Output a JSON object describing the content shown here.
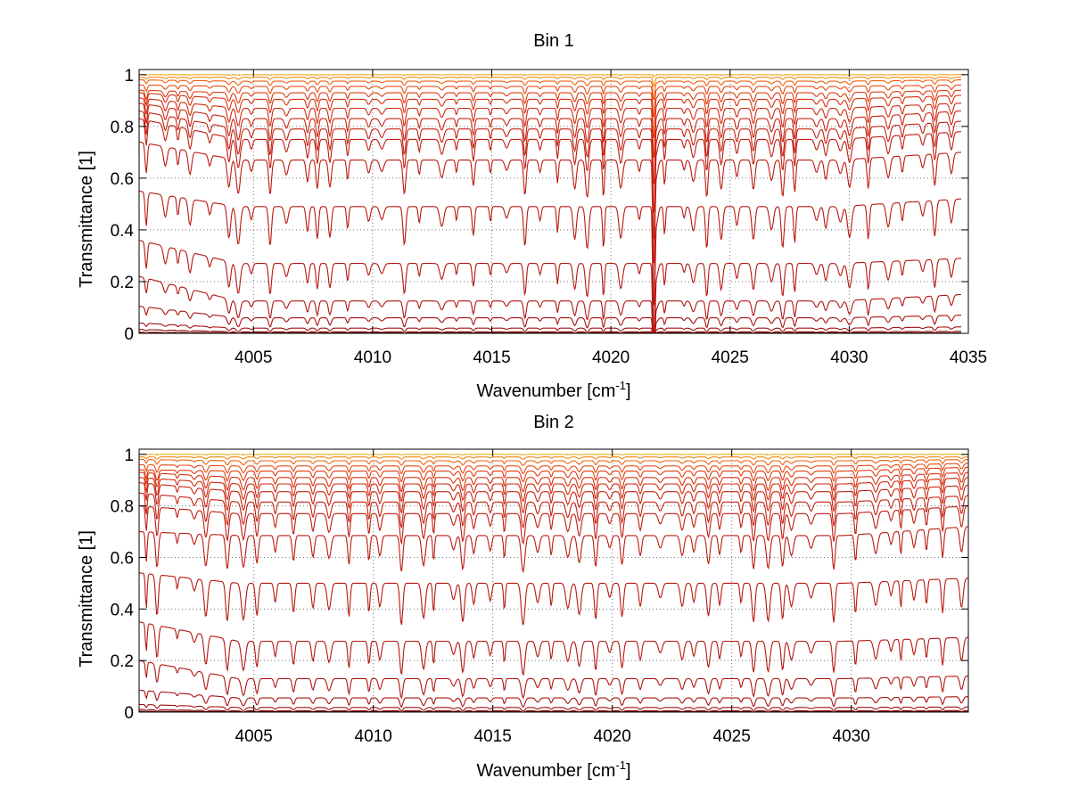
{
  "figure": {
    "background": "#ffffff"
  },
  "chart_data": [
    {
      "type": "line",
      "title": "Bin 1",
      "xlabel": "Wavenumber [cm",
      "xlabel_sup": "-1",
      "xlabel_end": "]",
      "ylabel": "Transmittance [1]",
      "xlim": [
        4000.2,
        4035.0
      ],
      "ylim": [
        0,
        1.02
      ],
      "xticks": [
        4005,
        4010,
        4015,
        4020,
        4025,
        4030,
        4035
      ],
      "xtick_labels": [
        "4005",
        "4010",
        "4015",
        "4020",
        "4025",
        "4030",
        "4035"
      ],
      "yticks": [
        0,
        0.2,
        0.4,
        0.6,
        0.8,
        1
      ],
      "ytick_labels": [
        "0",
        "0.2",
        "0.4",
        "0.6",
        "0.8",
        "1"
      ],
      "grid": true,
      "x_end": 4034.7,
      "series": [
        {
          "end_level": 1.0,
          "color": "#f5b020",
          "start_level": 1.0,
          "mid_level": 1.0
        },
        {
          "end_level": 0.99,
          "color": "#f08a10",
          "start_level": 0.99,
          "mid_level": 0.99
        },
        {
          "end_level": 0.98,
          "color": "#ee6010",
          "start_level": 0.98,
          "mid_level": 0.975
        },
        {
          "end_level": 0.96,
          "color": "#e84a10",
          "start_level": 0.96,
          "mid_level": 0.955
        },
        {
          "end_level": 0.94,
          "color": "#e03c10",
          "start_level": 0.94,
          "mid_level": 0.93
        },
        {
          "end_level": 0.92,
          "color": "#d83210",
          "start_level": 0.93,
          "mid_level": 0.905
        },
        {
          "end_level": 0.89,
          "color": "#d02a10",
          "start_level": 0.91,
          "mid_level": 0.87
        },
        {
          "end_level": 0.86,
          "color": "#c82410",
          "start_level": 0.89,
          "mid_level": 0.83
        },
        {
          "end_level": 0.82,
          "color": "#c42010",
          "start_level": 0.86,
          "mid_level": 0.79
        },
        {
          "end_level": 0.78,
          "color": "#c01c10",
          "start_level": 0.83,
          "mid_level": 0.75
        },
        {
          "end_level": 0.7,
          "color": "#bc1a10",
          "start_level": 0.74,
          "mid_level": 0.67
        },
        {
          "end_level": 0.52,
          "color": "#b81810",
          "start_level": 0.55,
          "mid_level": 0.49
        },
        {
          "end_level": 0.29,
          "color": "#b41610",
          "start_level": 0.36,
          "mid_level": 0.27
        },
        {
          "end_level": 0.15,
          "color": "#b01410",
          "start_level": 0.22,
          "mid_level": 0.125
        },
        {
          "end_level": 0.07,
          "color": "#a81210",
          "start_level": 0.105,
          "mid_level": 0.06
        },
        {
          "end_level": 0.025,
          "color": "#a01010",
          "start_level": 0.04,
          "mid_level": 0.02
        },
        {
          "end_level": 0.008,
          "color": "#8c0a0a",
          "start_level": 0.015,
          "mid_level": 0.006
        },
        {
          "end_level": 0.002,
          "color": "#780606",
          "start_level": 0.004,
          "mid_level": 0.002
        }
      ]
    },
    {
      "type": "line",
      "title": "Bin 2",
      "xlabel": "Wavenumber [cm",
      "xlabel_sup": "-1",
      "xlabel_end": "]",
      "ylabel": "Transmittance [1]",
      "xlim": [
        4000.2,
        4034.9
      ],
      "ylim": [
        0,
        1.02
      ],
      "xticks": [
        4005,
        4010,
        4015,
        4020,
        4025,
        4030
      ],
      "xtick_labels": [
        "4005",
        "4010",
        "4015",
        "4020",
        "4025",
        "4030"
      ],
      "yticks": [
        0,
        0.2,
        0.4,
        0.6,
        0.8,
        1
      ],
      "ytick_labels": [
        "0",
        "0.2",
        "0.4",
        "0.6",
        "0.8",
        "1"
      ],
      "grid": true,
      "x_end": 4034.9,
      "series": [
        {
          "end_level": 1.0,
          "color": "#f5b020",
          "start_level": 1.0,
          "mid_level": 1.0
        },
        {
          "end_level": 0.99,
          "color": "#f08a10",
          "start_level": 0.99,
          "mid_level": 0.99
        },
        {
          "end_level": 0.98,
          "color": "#ee6010",
          "start_level": 0.98,
          "mid_level": 0.975
        },
        {
          "end_level": 0.965,
          "color": "#e84a10",
          "start_level": 0.96,
          "mid_level": 0.955
        },
        {
          "end_level": 0.95,
          "color": "#e03c10",
          "start_level": 0.94,
          "mid_level": 0.935
        },
        {
          "end_level": 0.93,
          "color": "#d83210",
          "start_level": 0.93,
          "mid_level": 0.91
        },
        {
          "end_level": 0.91,
          "color": "#d02a10",
          "start_level": 0.91,
          "mid_level": 0.885
        },
        {
          "end_level": 0.88,
          "color": "#c82410",
          "start_level": 0.89,
          "mid_level": 0.855
        },
        {
          "end_level": 0.84,
          "color": "#c42010",
          "start_level": 0.85,
          "mid_level": 0.815
        },
        {
          "end_level": 0.8,
          "color": "#c01c10",
          "start_level": 0.8,
          "mid_level": 0.77
        },
        {
          "end_level": 0.72,
          "color": "#bc1a10",
          "start_level": 0.7,
          "mid_level": 0.685
        },
        {
          "end_level": 0.52,
          "color": "#b81810",
          "start_level": 0.54,
          "mid_level": 0.5
        },
        {
          "end_level": 0.29,
          "color": "#b41610",
          "start_level": 0.35,
          "mid_level": 0.275
        },
        {
          "end_level": 0.14,
          "color": "#b01410",
          "start_level": 0.2,
          "mid_level": 0.13
        },
        {
          "end_level": 0.06,
          "color": "#a81210",
          "start_level": 0.085,
          "mid_level": 0.055
        },
        {
          "end_level": 0.02,
          "color": "#a01010",
          "start_level": 0.03,
          "mid_level": 0.018
        },
        {
          "end_level": 0.006,
          "color": "#8c0a0a",
          "start_level": 0.01,
          "mid_level": 0.005
        },
        {
          "end_level": 0.002,
          "color": "#780606",
          "start_level": 0.003,
          "mid_level": 0.002
        }
      ]
    }
  ]
}
